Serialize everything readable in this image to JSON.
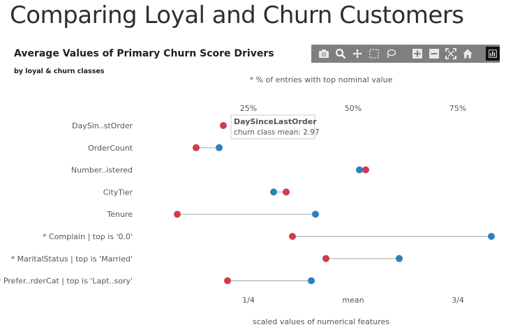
{
  "page": {
    "title": "Comparing Loyal and Churn Customers"
  },
  "toolbar": {
    "buttons": [
      "camera-icon",
      "zoom-icon",
      "pan-icon",
      "box-select-icon",
      "lasso-icon",
      "zoom-in-icon",
      "zoom-out-icon",
      "autoscale-icon",
      "home-icon"
    ],
    "logo": "plotly-logo-icon"
  },
  "colors": {
    "churn": "#d13b4e",
    "loyal": "#2f7fbb",
    "connector": "#b0b0b0",
    "text": "#555555"
  },
  "chart_data": {
    "type": "dumbbell",
    "title": "Average Values of Primary Churn Score Drivers",
    "subtitle": "by loyal & churn classes",
    "top_axis": {
      "note": "* % of entries with top nominal value",
      "ticks": [
        25,
        50,
        75
      ],
      "tick_labels": [
        "25%",
        "50%",
        "75%"
      ]
    },
    "bottom_axis": {
      "label": "scaled values of numerical features",
      "ticks": [
        25,
        50,
        75
      ],
      "tick_labels": [
        "1/4",
        "mean",
        "3/4"
      ]
    },
    "xlim": [
      0,
      85
    ],
    "series": [
      {
        "name": "churn",
        "color": "#d13b4e"
      },
      {
        "name": "loyal",
        "color": "#2f7fbb"
      }
    ],
    "rows": [
      {
        "label": "DaySin..stOrder",
        "churn": 19,
        "loyal": null
      },
      {
        "label": "OrderCount",
        "churn": 12.5,
        "loyal": 18
      },
      {
        "label": "Number..istered",
        "churn": 53,
        "loyal": 51.5
      },
      {
        "label": "CityTier",
        "churn": 34,
        "loyal": 31
      },
      {
        "label": "Tenure",
        "churn": 8,
        "loyal": 41
      },
      {
        "label": "* Complain | top is '0.0'",
        "churn": 35.5,
        "loyal": 83
      },
      {
        "label": "* MaritalStatus | top is 'Married'",
        "churn": 43.5,
        "loyal": 61
      },
      {
        "label": "* Prefer..rderCat | top is 'Lapt..sory'",
        "churn": 20,
        "loyal": 40
      }
    ],
    "tooltip": {
      "title": "DaySinceLastOrder",
      "text": "churn class mean: 2.97",
      "row": 0
    }
  }
}
